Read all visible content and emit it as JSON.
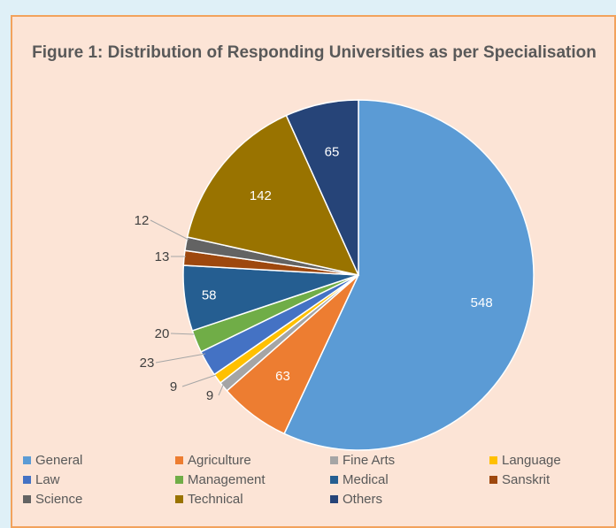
{
  "chart_data": {
    "type": "pie",
    "title": "Figure 1: Distribution of Responding Universities as per Specialisation",
    "categories": [
      "General",
      "Agriculture",
      "Fine Arts",
      "Language",
      "Law",
      "Management",
      "Medical",
      "Sanskrit",
      "Science",
      "Technical",
      "Others"
    ],
    "values": [
      548,
      63,
      9,
      9,
      23,
      20,
      58,
      13,
      12,
      142,
      65
    ],
    "colors": [
      "#5b9bd5",
      "#ed7d31",
      "#a5a5a5",
      "#ffc000",
      "#4472c4",
      "#70ad47",
      "#255e91",
      "#9e480e",
      "#636363",
      "#997300",
      "#264478"
    ],
    "data_labels": [
      "548",
      "63",
      "9",
      "9",
      "23",
      "20",
      "58",
      "13",
      "12",
      "142",
      "65"
    ],
    "legend_position": "bottom",
    "start_angle_deg": 0,
    "direction": "clockwise"
  }
}
